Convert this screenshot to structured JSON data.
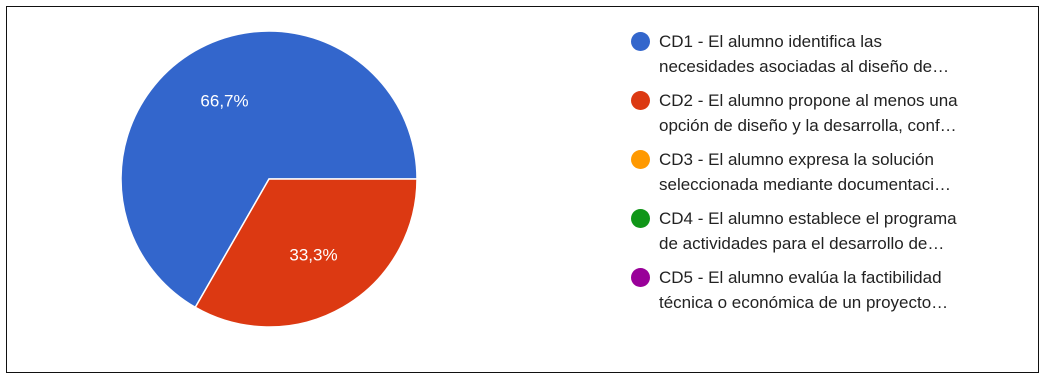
{
  "chart_data": {
    "type": "pie",
    "title": "",
    "slices": [
      {
        "label": "CD1 - El alumno identifica las necesidades asociadas al diseño de…",
        "value": 66.7,
        "display": "66,7%",
        "color": "#3366cc"
      },
      {
        "label": "CD2 - El alumno propone al menos una opción de diseño y la desarrolla, conf…",
        "value": 33.3,
        "display": "33,3%",
        "color": "#dc3912"
      },
      {
        "label": "CD3 - El alumno expresa la solución seleccionada mediante documentaci…",
        "value": 0,
        "display": "",
        "color": "#ff9900"
      },
      {
        "label": "CD4 - El alumno establece el programa de actividades para el desarrollo de…",
        "value": 0,
        "display": "",
        "color": "#109618"
      },
      {
        "label": "CD5 - El alumno evalúa la factibilidad técnica o económica de un proyecto…",
        "value": 0,
        "display": "",
        "color": "#990099"
      }
    ],
    "legend": {
      "position": "right",
      "items": [
        {
          "line1": "CD1 - El alumno identifica las",
          "line2": "necesidades asociadas al diseño de…",
          "color": "#3366cc"
        },
        {
          "line1": "CD2 - El alumno propone al menos una",
          "line2": "opción de diseño y la desarrolla, conf…",
          "color": "#dc3912"
        },
        {
          "line1": "CD3 - El alumno expresa la solución",
          "line2": "seleccionada mediante documentaci…",
          "color": "#ff9900"
        },
        {
          "line1": "CD4 - El alumno establece el programa",
          "line2": "de actividades para el desarrollo de…",
          "color": "#109618"
        },
        {
          "line1": "CD5 - El alumno evalúa la factibilidad",
          "line2": "técnica o económica de un proyecto…",
          "color": "#990099"
        }
      ]
    }
  }
}
